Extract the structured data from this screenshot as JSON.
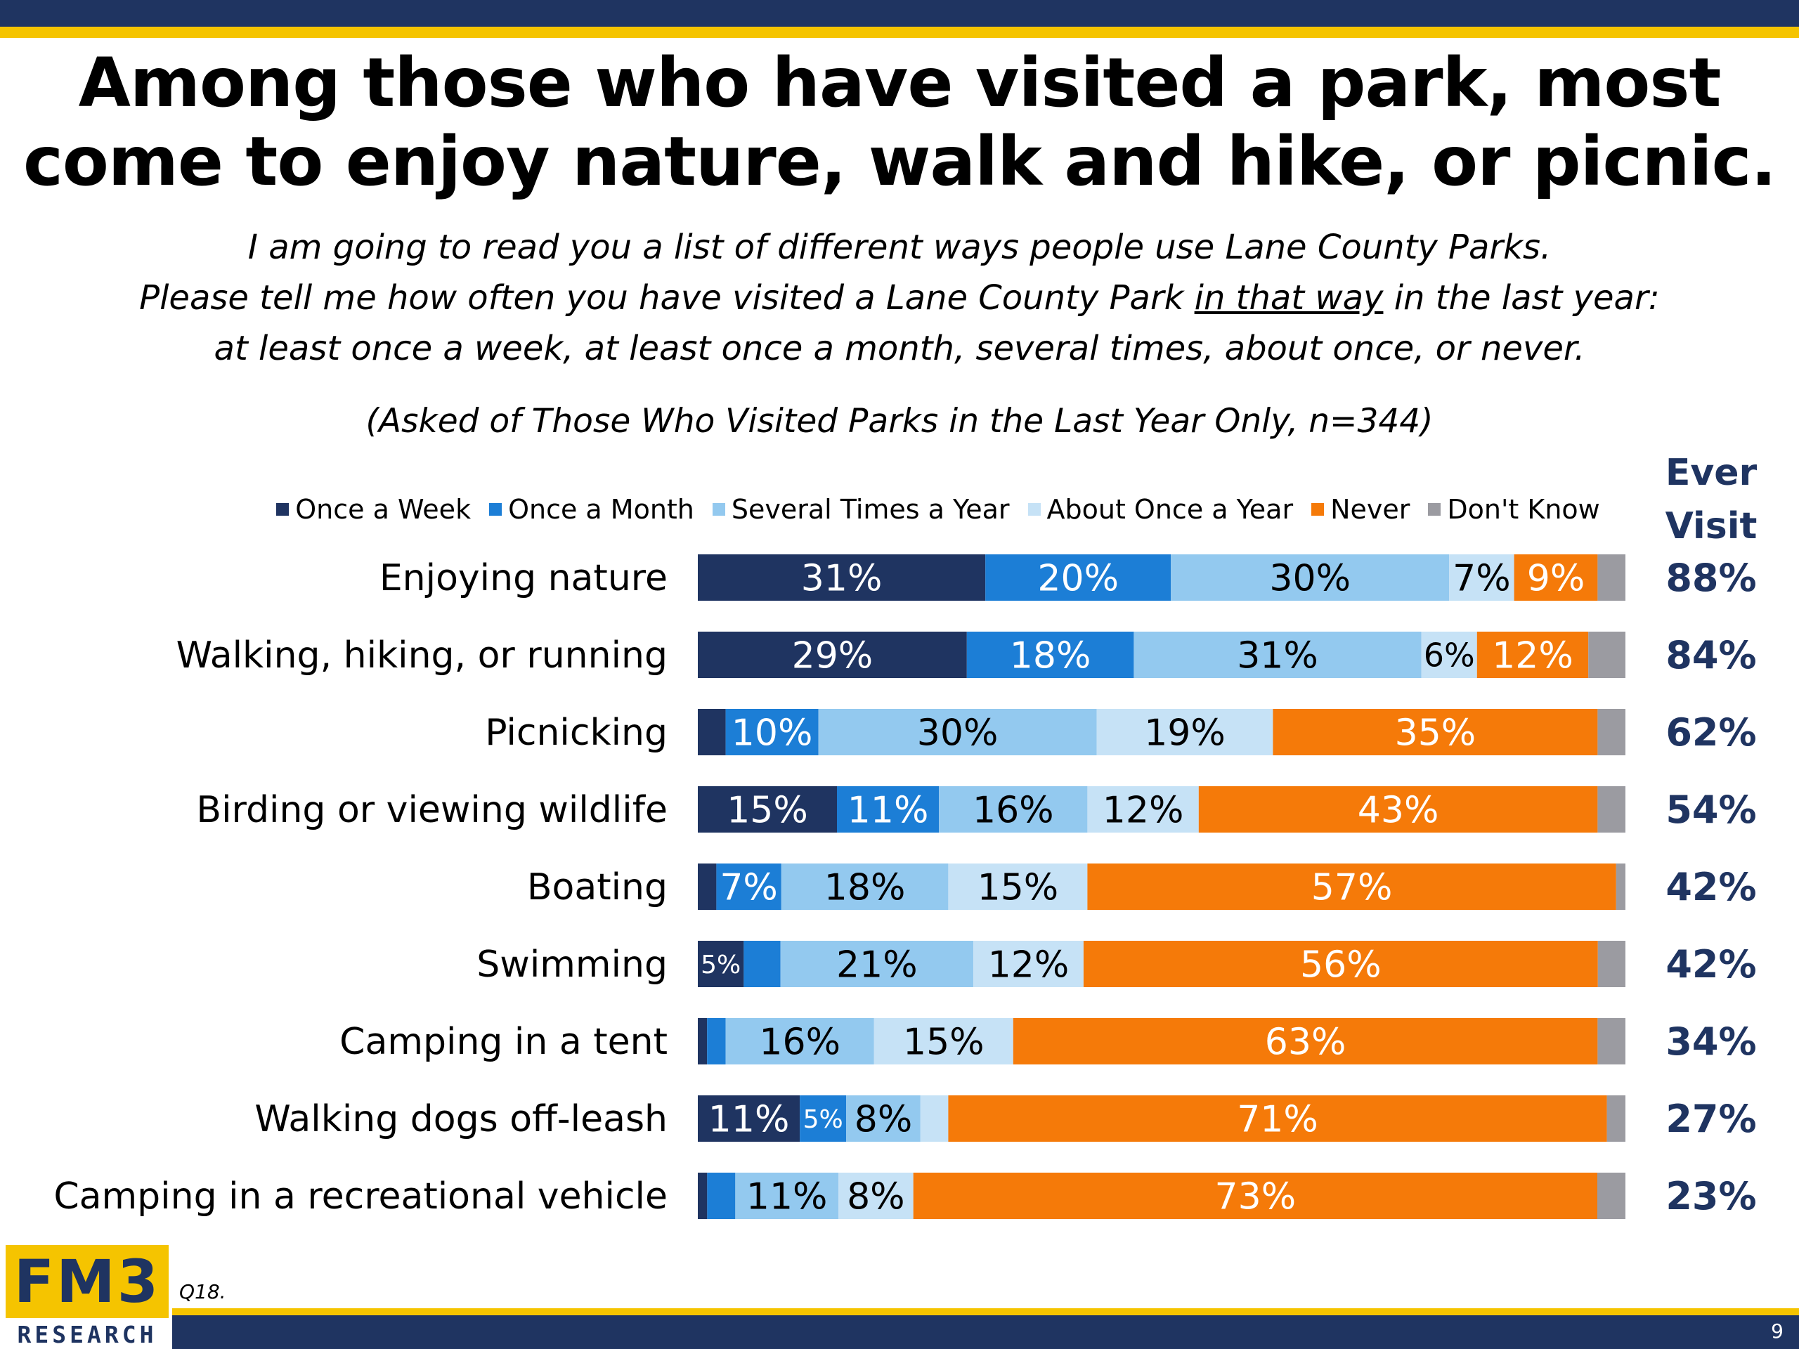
{
  "slide": {
    "title_line1": "Among those who have visited a park, most",
    "title_line2": "come to enjoy nature, walk and hike, or picnic.",
    "subtitle_line1": "I am going to read you a list of different ways people use Lane County Parks.",
    "subtitle_line2_pre": "Please tell me how often you have visited a Lane County Park ",
    "subtitle_line2_ul": "in that way",
    "subtitle_line2_post": " in the last year:",
    "subtitle_line3": "at least once a week, at least once a month, several times, about once, or never.",
    "base_note": "(Asked of Those Who Visited Parks in the Last Year Only, n=344)",
    "ever_header_line1": "Ever",
    "ever_header_line2": "Visit",
    "question_note": "Q18.",
    "page_number": "9",
    "logo_text": "FM3",
    "logo_sub": "RESEARCH"
  },
  "colors": {
    "once_week": "#1f3461",
    "once_month": "#1c7ed6",
    "several": "#93c9ef",
    "about_once": "#c6e2f6",
    "never": "#f57a09",
    "dont_know": "#9b9ba1",
    "accent_navy": "#1f3461",
    "accent_yellow": "#f5c400"
  },
  "chart_data": {
    "type": "bar",
    "orientation": "horizontal",
    "stacked": true,
    "legend_placement": "top",
    "xlim": [
      0,
      100
    ],
    "categories": [
      "Enjoying nature",
      "Walking, hiking, or running",
      "Picnicking",
      "Birding or viewing wildlife",
      "Boating",
      "Swimming",
      "Camping in a tent",
      "Walking dogs off-leash",
      "Camping in a recreational vehicle"
    ],
    "series": [
      {
        "name": "Once a Week",
        "color": "#1f3461",
        "values": [
          31,
          29,
          3,
          15,
          2,
          5,
          1,
          11,
          1
        ],
        "labels": [
          "31%",
          "29%",
          "",
          "15%",
          "",
          "5%",
          "",
          "11%",
          ""
        ]
      },
      {
        "name": "Once a Month",
        "color": "#1c7ed6",
        "values": [
          20,
          18,
          10,
          11,
          7,
          4,
          2,
          5,
          3
        ],
        "labels": [
          "20%",
          "18%",
          "10%",
          "11%",
          "7%",
          "",
          "",
          "5%",
          ""
        ]
      },
      {
        "name": "Several Times a Year",
        "color": "#93c9ef",
        "values": [
          30,
          31,
          30,
          16,
          18,
          21,
          16,
          8,
          11
        ],
        "labels": [
          "30%",
          "31%",
          "30%",
          "16%",
          "18%",
          "21%",
          "16%",
          "8%",
          "11%"
        ]
      },
      {
        "name": "About Once a Year",
        "color": "#c6e2f6",
        "values": [
          7,
          6,
          19,
          12,
          15,
          12,
          15,
          3,
          8
        ],
        "labels": [
          "7%",
          "6%",
          "19%",
          "12%",
          "15%",
          "12%",
          "15%",
          "",
          "8%"
        ]
      },
      {
        "name": "Never",
        "color": "#f57a09",
        "values": [
          9,
          12,
          35,
          43,
          57,
          56,
          63,
          71,
          73
        ],
        "labels": [
          "9%",
          "12%",
          "35%",
          "43%",
          "57%",
          "56%",
          "63%",
          "71%",
          "73%"
        ]
      },
      {
        "name": "Don't Know",
        "color": "#9b9ba1",
        "values": [
          3,
          4,
          3,
          3,
          1,
          3,
          3,
          2,
          3
        ],
        "labels": [
          "",
          "",
          "",
          "",
          "",
          "",
          "",
          "",
          ""
        ]
      }
    ],
    "ever_visit": [
      "88%",
      "84%",
      "62%",
      "54%",
      "42%",
      "42%",
      "34%",
      "27%",
      "23%"
    ]
  }
}
